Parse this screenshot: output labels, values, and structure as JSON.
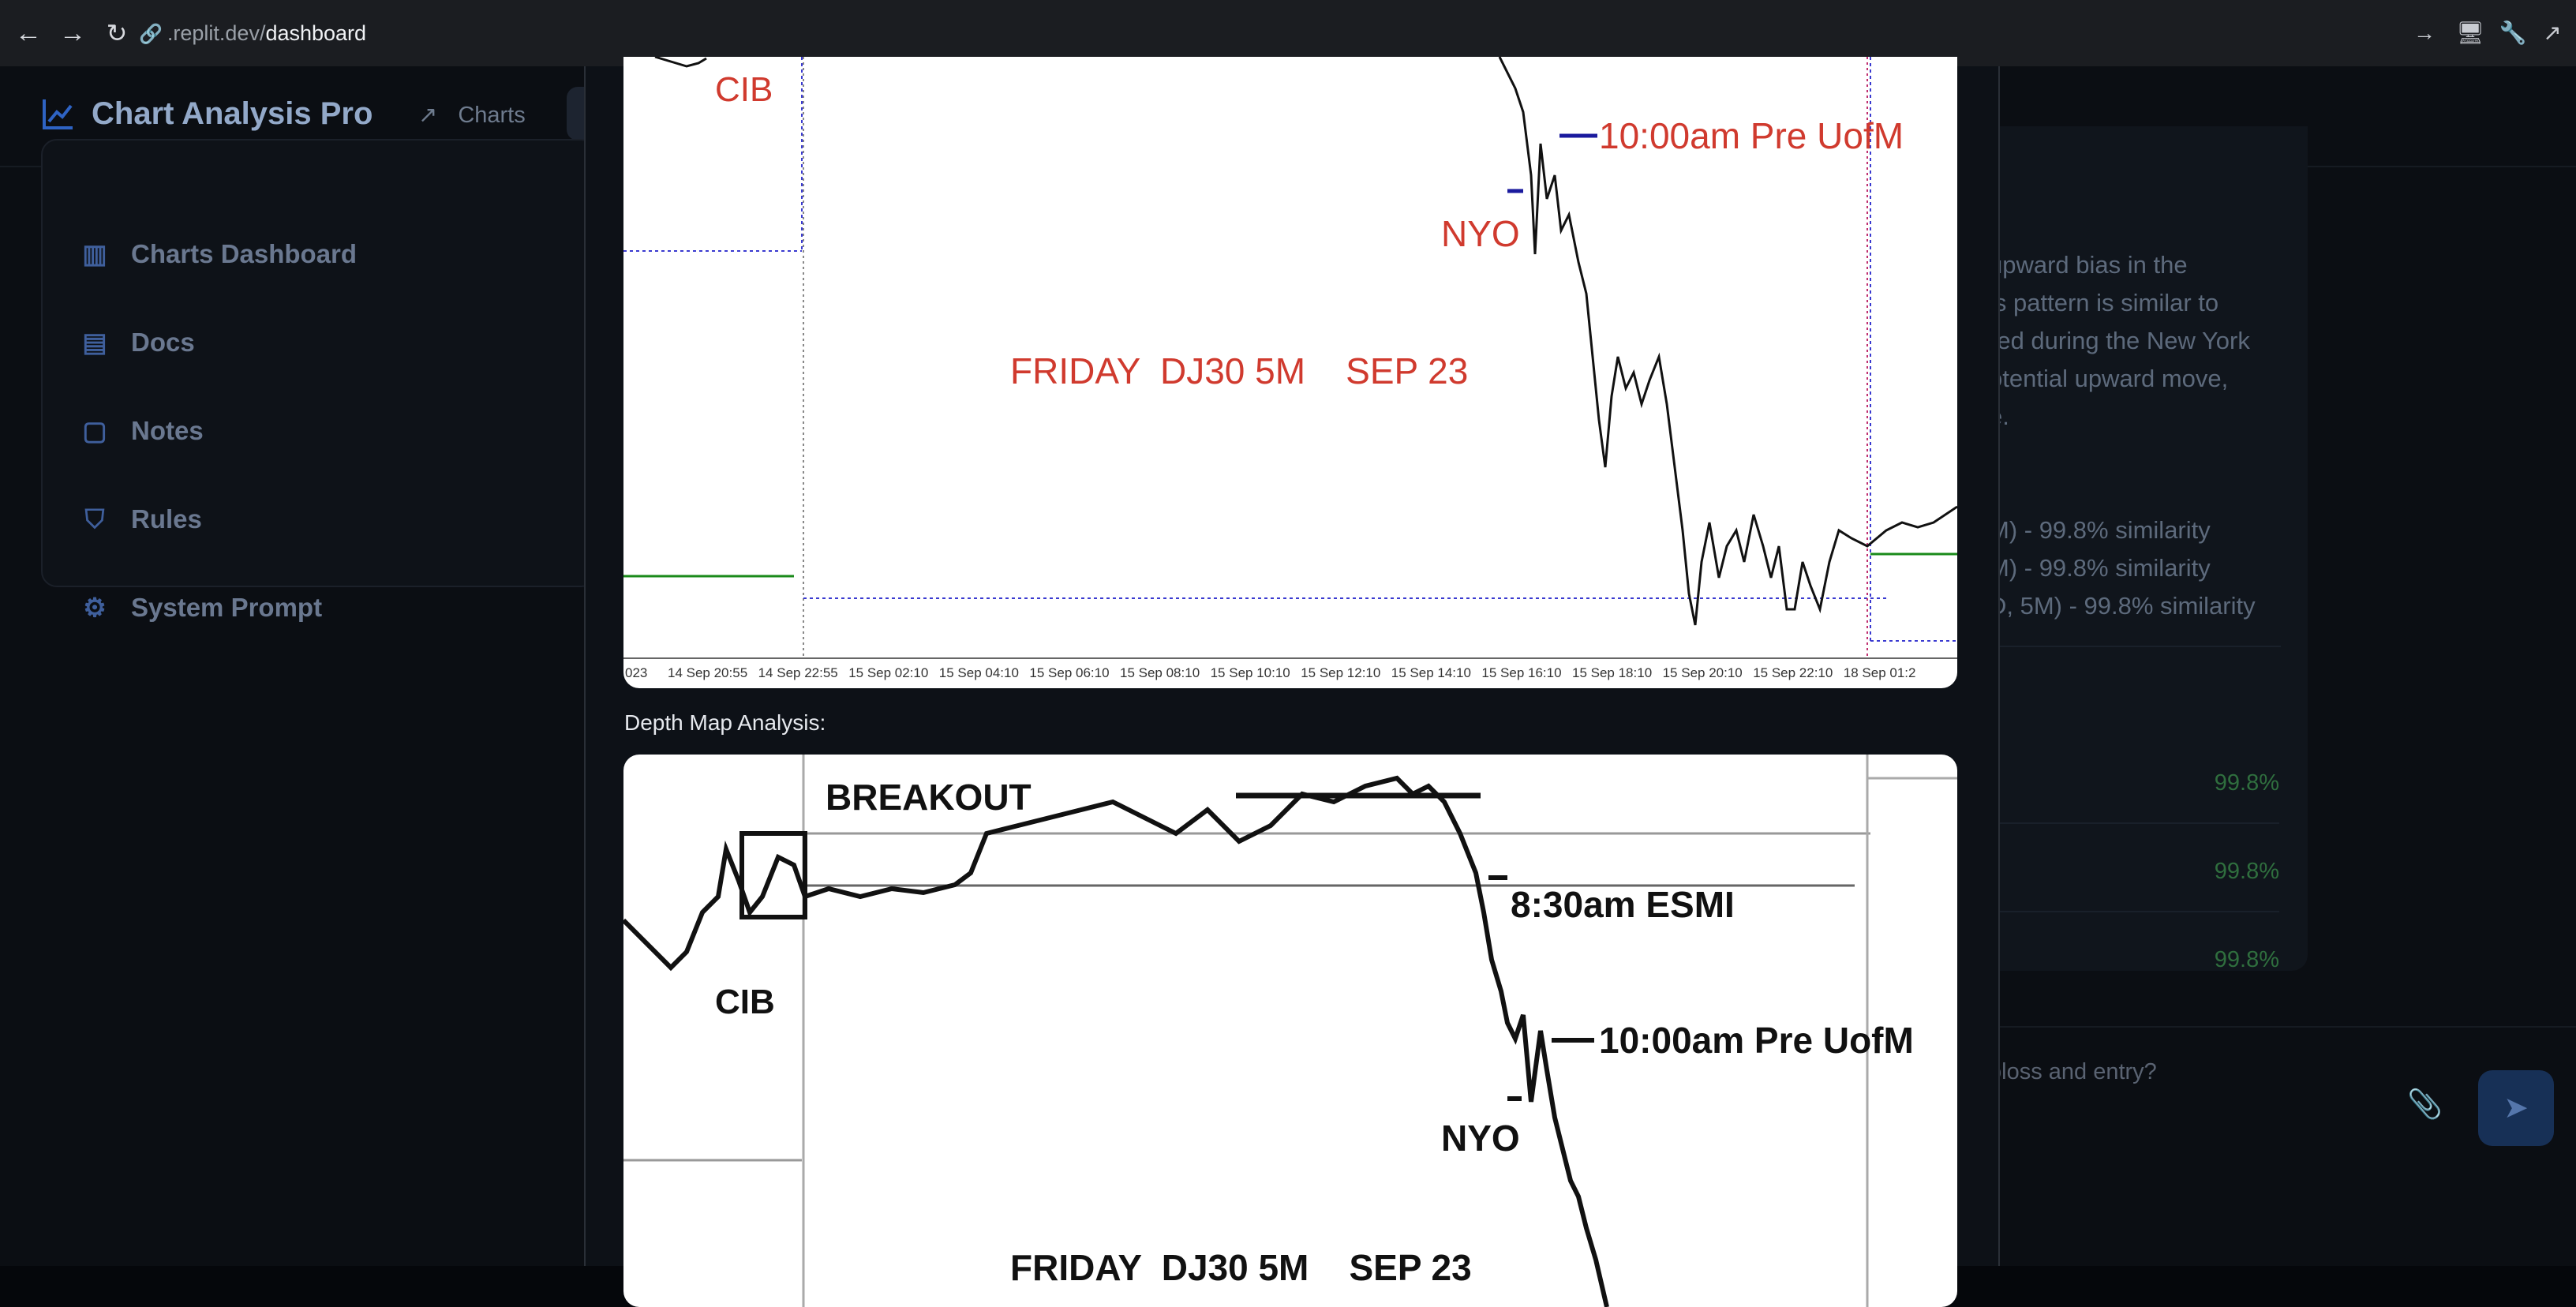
{
  "browser": {
    "url_prefix": ".replit.dev/",
    "url_path": "dashboard"
  },
  "app": {
    "title": "Chart Analysis Pro",
    "header_tab": "Charts",
    "sidebar": [
      {
        "label": "Charts Dashboard",
        "icon": "bar-chart-icon"
      },
      {
        "label": "Docs",
        "icon": "document-icon"
      },
      {
        "label": "Notes",
        "icon": "note-icon"
      },
      {
        "label": "Rules",
        "icon": "shield-icon"
      },
      {
        "label": "System Prompt",
        "icon": "gear-icon"
      }
    ],
    "analysis_fragments": [
      "upward bias in the",
      "is pattern is similar to",
      "red during the New York",
      "otential upward move,",
      "e."
    ],
    "similar_fragments": [
      "M) - 99.8% similarity",
      "M) - 99.8% similarity",
      "D, 5M) - 99.8% similarity"
    ],
    "score_rows": [
      "99.8%",
      "99.8%",
      "99.8%"
    ],
    "composer_placeholder": "oloss and entry?"
  },
  "modal": {
    "top_chart": {
      "labels": {
        "cib": "CIB",
        "nyo": "NYO",
        "pre_uofm": "10:00am Pre UofM",
        "title": "FRIDAY  DJ30 5M    SEP 23"
      },
      "x_ticks": [
        "023",
        "14 Sep 20:55",
        "14 Sep 22:55",
        "15 Sep 02:10",
        "15 Sep 04:10",
        "15 Sep 06:10",
        "15 Sep 08:10",
        "15 Sep 10:10",
        "15 Sep 12:10",
        "15 Sep 14:10",
        "15 Sep 16:10",
        "15 Sep 18:10",
        "15 Sep 20:10",
        "15 Sep 22:10",
        "18 Sep 01:2"
      ]
    },
    "depth_caption": "Depth Map Analysis:",
    "depth_chart": {
      "labels": {
        "breakout": "BREAKOUT",
        "esmi": "8:30am ESMI",
        "pre_uofm": "10:00am Pre UofM",
        "cib": "CIB",
        "nyo": "NYO",
        "title": "FRIDAY  DJ30 5M    SEP 23"
      }
    }
  }
}
